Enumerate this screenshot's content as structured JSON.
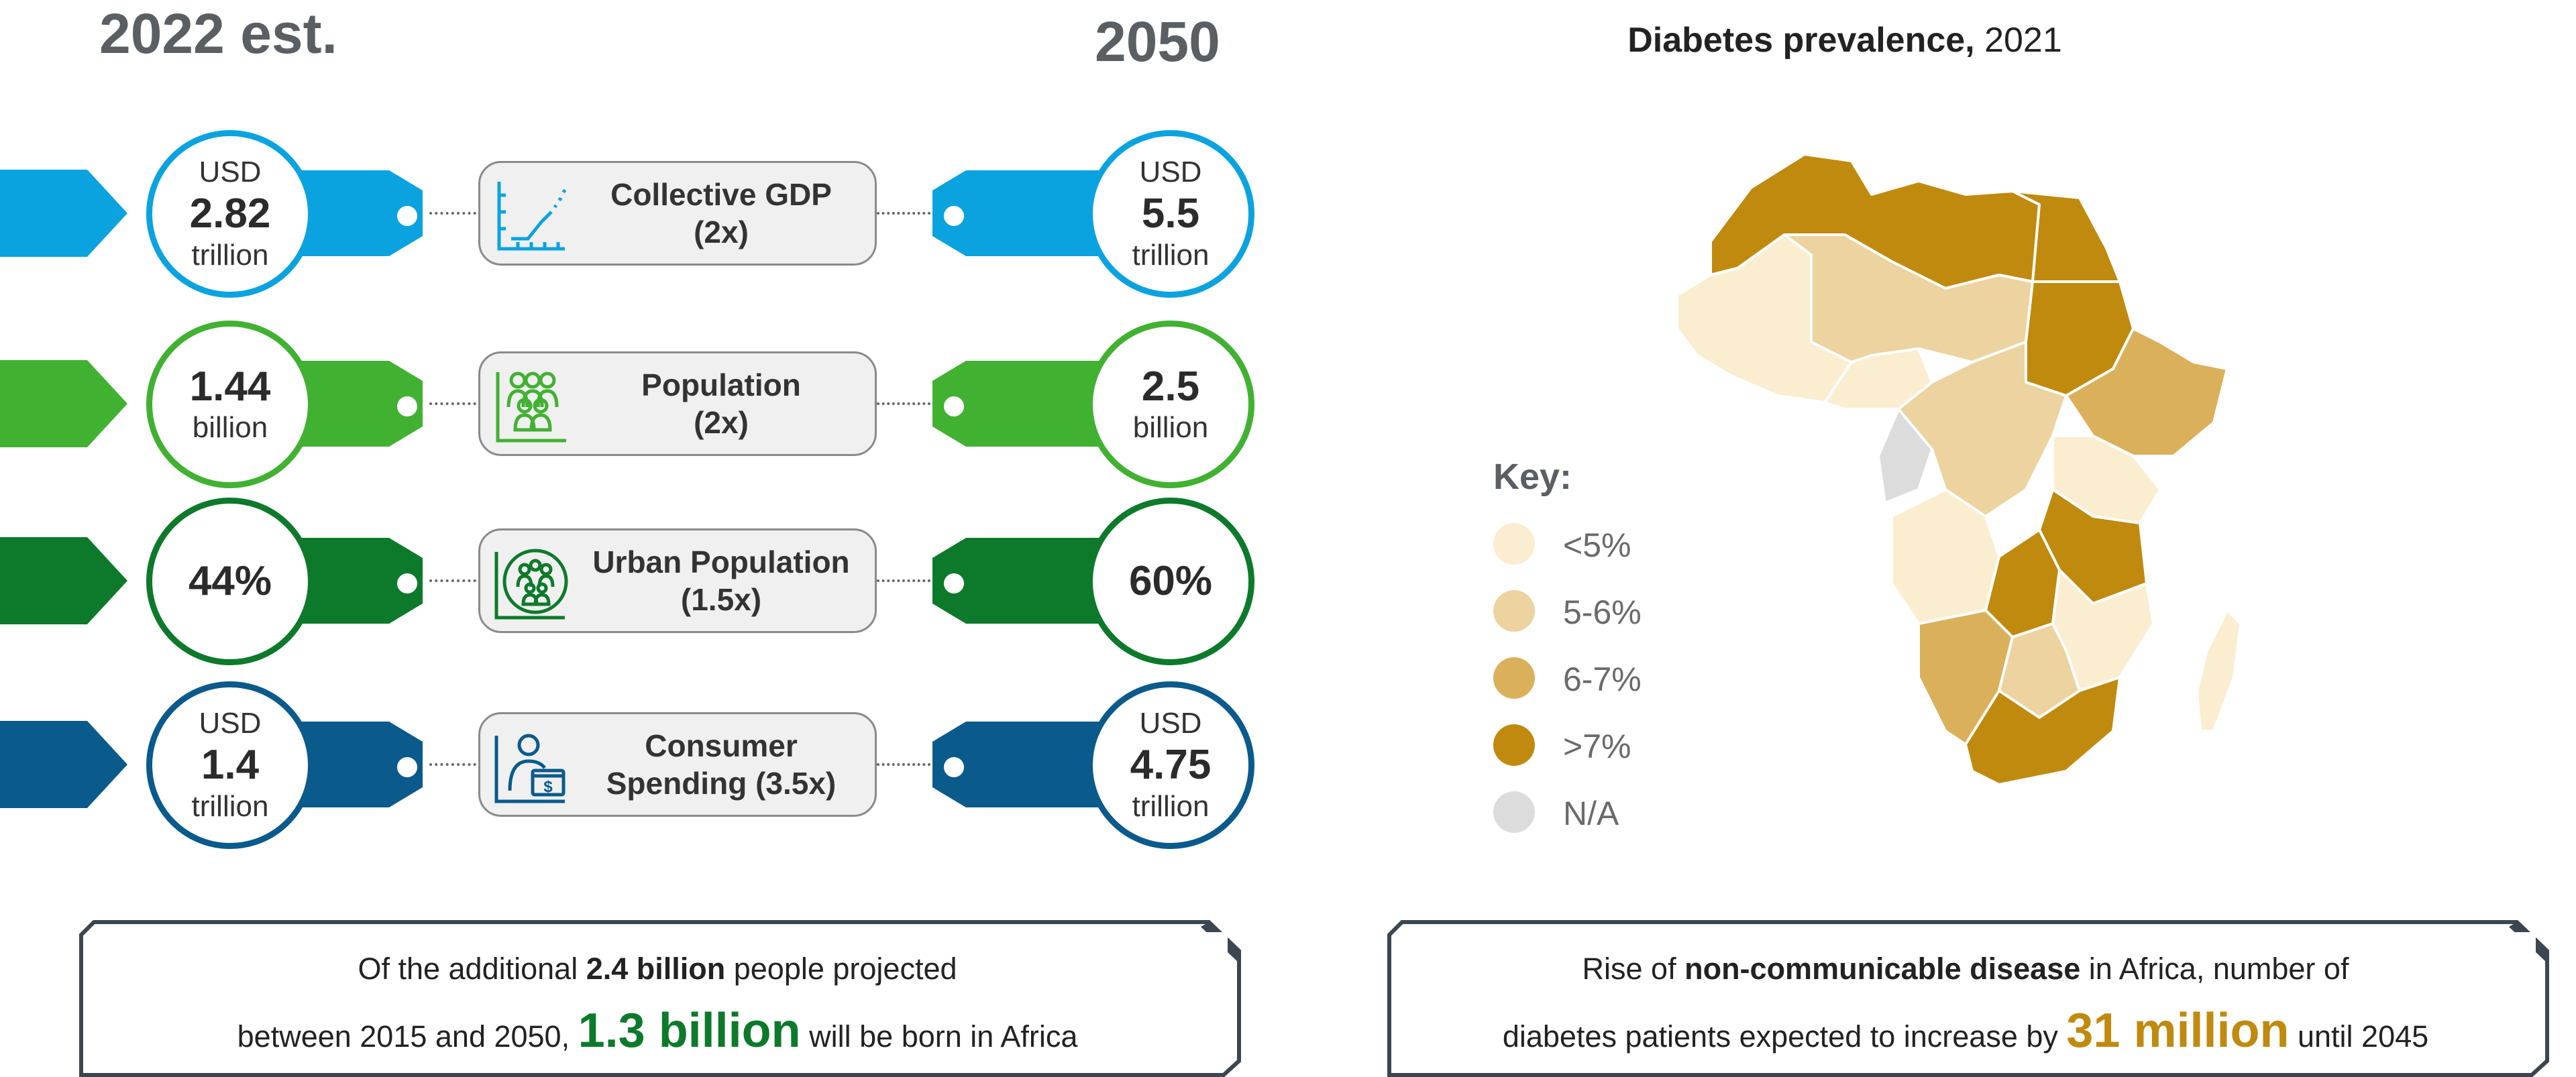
{
  "header": {
    "left_year": "2022 est.",
    "right_year": "2050"
  },
  "colors": {
    "gdp": "#0aa3e0",
    "population": "#41b132",
    "urban": "#0d7a2b",
    "consumer": "#0a5a8c",
    "gold": "#c08a0e",
    "lt5": "#fbedd0",
    "c56": "#ecd39f",
    "c67": "#dbb05b",
    "gt7": "#c08a0e",
    "na": "#dcdcdc"
  },
  "rows": [
    {
      "id": "gdp",
      "icon": "line-chart-icon",
      "label_1": "Collective GDP",
      "label_2": "(2x)",
      "left": {
        "top": "USD",
        "value": "2.82",
        "bottom": "trillion"
      },
      "right": {
        "top": "USD",
        "value": "5.5",
        "bottom": "trillion"
      }
    },
    {
      "id": "population",
      "icon": "people-group-icon",
      "label_1": "Population",
      "label_2": "(2x)",
      "left": {
        "top": "",
        "value": "1.44",
        "bottom": "billion"
      },
      "right": {
        "top": "",
        "value": "2.5",
        "bottom": "billion"
      }
    },
    {
      "id": "urban",
      "icon": "urban-people-icon",
      "label_1": "Urban Population",
      "label_2": "(1.5x)",
      "left": {
        "top": "",
        "value": "44%",
        "bottom": ""
      },
      "right": {
        "top": "",
        "value": "60%",
        "bottom": ""
      }
    },
    {
      "id": "consumer",
      "icon": "consumer-spending-icon",
      "label_1": "Consumer",
      "label_2": "Spending (3.5x)",
      "left": {
        "top": "USD",
        "value": "1.4",
        "bottom": "trillion"
      },
      "right": {
        "top": "USD",
        "value": "4.75",
        "bottom": "trillion"
      }
    }
  ],
  "left_box": {
    "line1_pre": "Of the additional ",
    "line1_bold": "2.4 billion",
    "line1_post": " people projected",
    "line2_pre": "between 2015 and 2050, ",
    "line2_big": "1.3 billion",
    "line2_post": " will be born in Africa"
  },
  "map": {
    "title_bold": "Diabetes prevalence,",
    "title_rest": " 2021",
    "key_title": "Key:",
    "key": [
      {
        "label": "<5%",
        "color": "#fbedd0"
      },
      {
        "label": "5-6%",
        "color": "#ecd39f"
      },
      {
        "label": "6-7%",
        "color": "#dbb05b"
      },
      {
        "label": ">7%",
        "color": "#c08a0e"
      },
      {
        "label": "N/A",
        "color": "#dcdcdc"
      }
    ]
  },
  "right_box": {
    "line1_pre": "Rise of ",
    "line1_bold": "non-communicable disease",
    "line1_post": " in Africa, number of",
    "line2_pre": "diabetes patients expected to increase by ",
    "line2_big": "31 million",
    "line2_post": " until 2045"
  }
}
